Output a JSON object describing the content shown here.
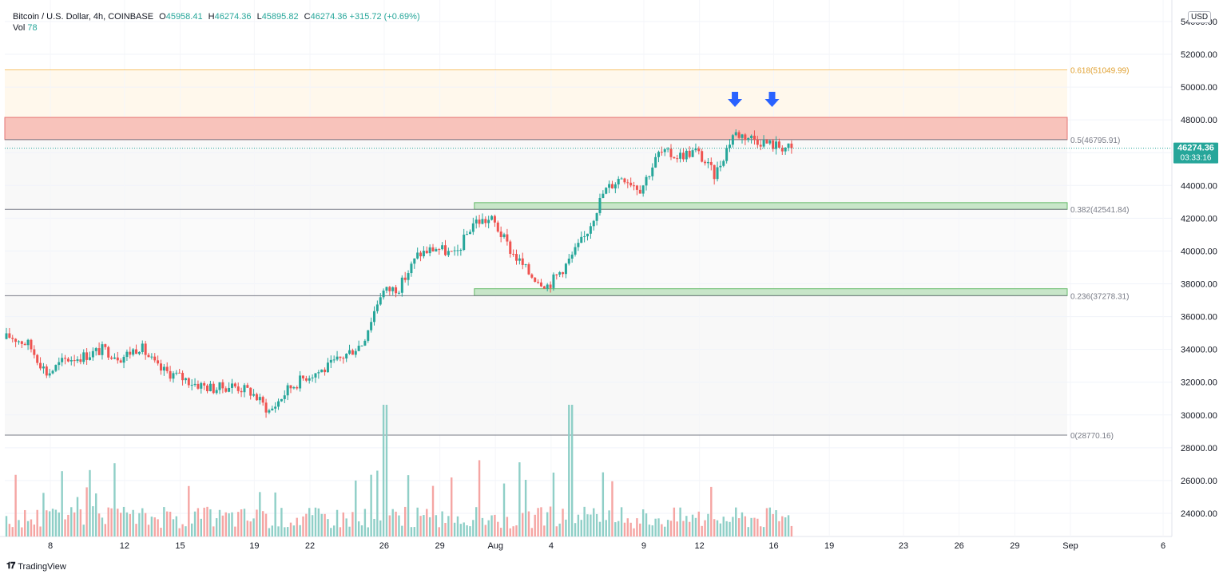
{
  "header": {
    "title": "Bitcoin / U.S. Dollar, 4h, COINBASE",
    "open_label": "O",
    "open_value": "45958.41",
    "high_label": "H",
    "high_value": "46274.36",
    "low_label": "L",
    "low_value": "45895.82",
    "close_label": "C",
    "close_value": "46274.36",
    "change": "+315.72 (+0.69%)",
    "vol_label": "Vol",
    "vol_value": "78"
  },
  "currency": "USD",
  "watermark": "TradingView",
  "price_tag": {
    "price": "46274.36",
    "countdown": "03:33:16"
  },
  "colors": {
    "up": "#26a69a",
    "down": "#ef5350",
    "up_vol": "#8fcfc7",
    "down_vol": "#f5a5a3",
    "resistance_fill": "#f8c3bb",
    "resistance_stroke": "#e57373",
    "support_fill": "#c8e6c9",
    "support_stroke": "#66bb6a",
    "fib_618": "#f7c46c",
    "fib_gray": "#787b86",
    "arrow": "#2962ff",
    "price_tag": "#26a69a"
  },
  "chart_data": {
    "type": "candlestick",
    "title": "Bitcoin / U.S. Dollar, 4h, COINBASE",
    "ylim": [
      22800,
      55000
    ],
    "y_ticks": [
      24000,
      26000,
      28000,
      30000,
      32000,
      34000,
      36000,
      38000,
      40000,
      42000,
      44000,
      46000,
      48000,
      50000,
      52000,
      54000
    ],
    "x_ticks": [
      {
        "label": "8",
        "date": "2021-07-08"
      },
      {
        "label": "12",
        "date": "2021-07-12"
      },
      {
        "label": "15",
        "date": "2021-07-15"
      },
      {
        "label": "19",
        "date": "2021-07-19"
      },
      {
        "label": "22",
        "date": "2021-07-22"
      },
      {
        "label": "26",
        "date": "2021-07-26"
      },
      {
        "label": "29",
        "date": "2021-07-29"
      },
      {
        "label": "Aug",
        "date": "2021-08-01"
      },
      {
        "label": "4",
        "date": "2021-08-04"
      },
      {
        "label": "9",
        "date": "2021-08-09"
      },
      {
        "label": "12",
        "date": "2021-08-12"
      },
      {
        "label": "16",
        "date": "2021-08-16"
      },
      {
        "label": "19",
        "date": "2021-08-19"
      },
      {
        "label": "23",
        "date": "2021-08-23"
      },
      {
        "label": "26",
        "date": "2021-08-26"
      },
      {
        "label": "29",
        "date": "2021-08-29"
      },
      {
        "label": "Sep",
        "date": "2021-09-01"
      },
      {
        "label": "6",
        "date": "2021-09-06"
      }
    ],
    "price_path": [
      [
        "2021-07-04",
        33900
      ],
      [
        "2021-07-06",
        34800
      ],
      [
        "2021-07-07",
        34300
      ],
      [
        "2021-07-08",
        32500
      ],
      [
        "2021-07-09",
        33400
      ],
      [
        "2021-07-10",
        33600
      ],
      [
        "2021-07-11",
        34000
      ],
      [
        "2021-07-12",
        33500
      ],
      [
        "2021-07-13",
        34200
      ],
      [
        "2021-07-14",
        32800
      ],
      [
        "2021-07-15",
        32400
      ],
      [
        "2021-07-16",
        31900
      ],
      [
        "2021-07-17",
        31600
      ],
      [
        "2021-07-18",
        31800
      ],
      [
        "2021-07-19",
        31400
      ],
      [
        "2021-07-20",
        30200
      ],
      [
        "2021-07-21",
        31600
      ],
      [
        "2021-07-22",
        32400
      ],
      [
        "2021-07-23",
        32800
      ],
      [
        "2021-07-24",
        33600
      ],
      [
        "2021-07-25",
        34400
      ],
      [
        "2021-07-26",
        37500
      ],
      [
        "2021-07-27",
        37800
      ],
      [
        "2021-07-28",
        39800
      ],
      [
        "2021-07-29",
        40200
      ],
      [
        "2021-07-30",
        39700
      ],
      [
        "2021-07-31",
        41800
      ],
      [
        "2021-08-01",
        41900
      ],
      [
        "2021-08-02",
        40000
      ],
      [
        "2021-08-03",
        38600
      ],
      [
        "2021-08-04",
        37900
      ],
      [
        "2021-08-05",
        39200
      ],
      [
        "2021-08-06",
        40900
      ],
      [
        "2021-08-07",
        43600
      ],
      [
        "2021-08-08",
        44600
      ],
      [
        "2021-08-09",
        43800
      ],
      [
        "2021-08-10",
        46000
      ],
      [
        "2021-08-11",
        45800
      ],
      [
        "2021-08-12",
        46100
      ],
      [
        "2021-08-13",
        44600
      ],
      [
        "2021-08-14",
        47200
      ],
      [
        "2021-08-15",
        46900
      ],
      [
        "2021-08-16",
        46500
      ],
      [
        "2021-08-17",
        46274.36
      ]
    ],
    "volume_spikes": [
      {
        "date": "2021-07-26",
        "volume": "high"
      },
      {
        "date": "2021-08-05",
        "volume": "high"
      }
    ],
    "zones": [
      {
        "type": "resistance",
        "from": 46795.91,
        "to": 48150
      },
      {
        "type": "support",
        "from": 42541.84,
        "to": 42950
      },
      {
        "type": "support",
        "from": 37278.31,
        "to": 37700
      }
    ],
    "fib_levels": [
      {
        "ratio": "0.618",
        "price": 51049.99,
        "label": "0.618(51049.99)"
      },
      {
        "ratio": "0.5",
        "price": 46795.91,
        "label": "0.5(46795.91)"
      },
      {
        "ratio": "0.382",
        "price": 42541.84,
        "label": "0.382(42541.84)"
      },
      {
        "ratio": "0.236",
        "price": 37278.31,
        "label": "0.236(37278.31)"
      },
      {
        "ratio": "0",
        "price": 28770.16,
        "label": "0(28770.16)"
      }
    ],
    "markers": [
      {
        "type": "down-arrow",
        "date": "2021-08-14"
      },
      {
        "type": "down-arrow",
        "date": "2021-08-16"
      }
    ],
    "last_price": 46274.36
  }
}
